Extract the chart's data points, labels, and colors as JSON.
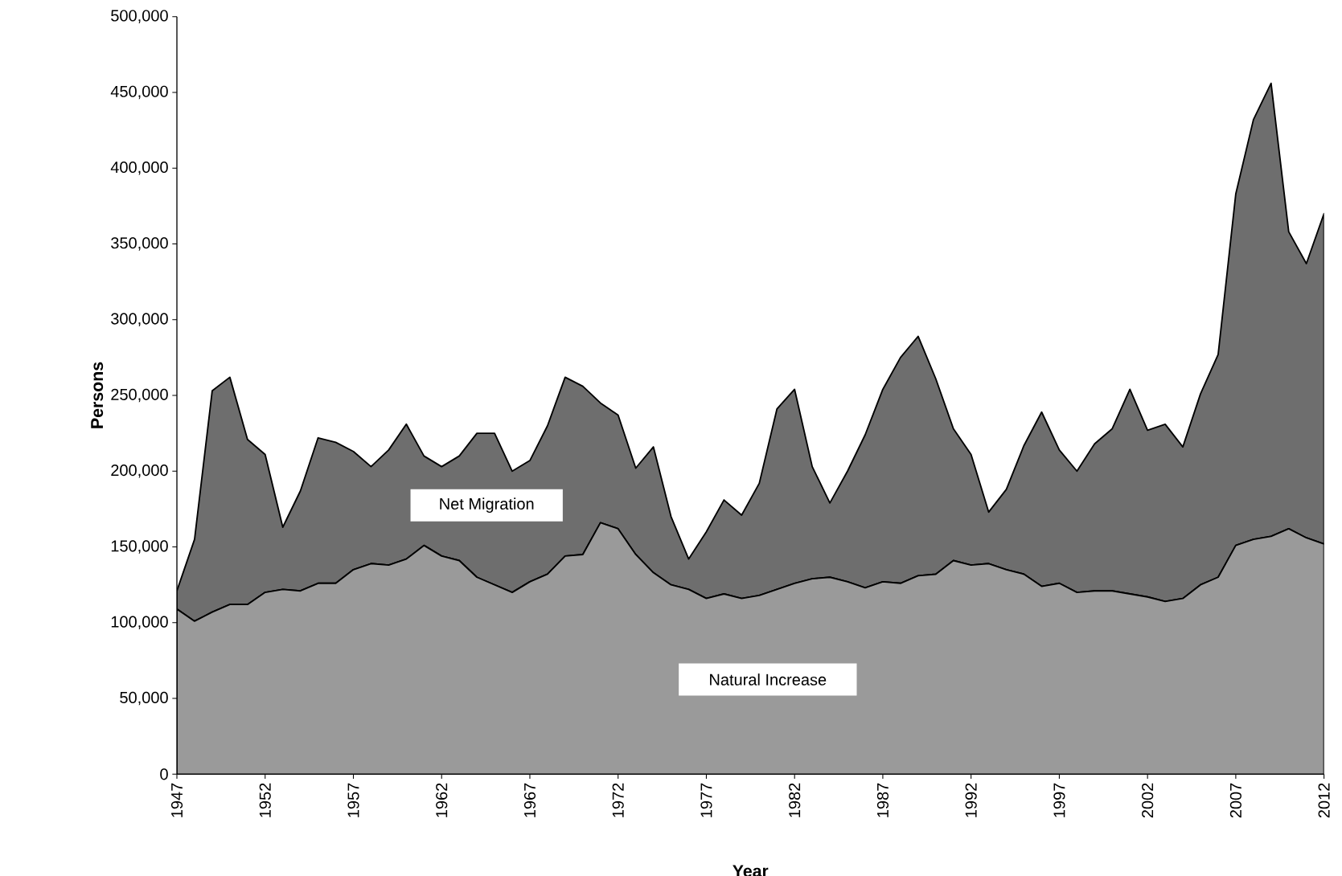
{
  "chart_data": {
    "type": "area",
    "stacked": true,
    "xlabel": "Year",
    "ylabel": "Persons",
    "legend": false,
    "x": [
      1947,
      1948,
      1949,
      1950,
      1951,
      1952,
      1953,
      1954,
      1955,
      1956,
      1957,
      1958,
      1959,
      1960,
      1961,
      1962,
      1963,
      1964,
      1965,
      1966,
      1967,
      1968,
      1969,
      1970,
      1971,
      1972,
      1973,
      1974,
      1975,
      1976,
      1977,
      1978,
      1979,
      1980,
      1981,
      1982,
      1983,
      1984,
      1985,
      1986,
      1987,
      1988,
      1989,
      1990,
      1991,
      1992,
      1993,
      1994,
      1995,
      1996,
      1997,
      1998,
      1999,
      2000,
      2001,
      2002,
      2003,
      2004,
      2005,
      2006,
      2007,
      2008,
      2009,
      2010,
      2011,
      2012
    ],
    "xlim": [
      1947,
      2012
    ],
    "xticks": [
      1947,
      1952,
      1957,
      1962,
      1967,
      1972,
      1977,
      1982,
      1987,
      1992,
      1997,
      2002,
      2007,
      2012
    ],
    "ylim": [
      0,
      500000
    ],
    "yticks": [
      0,
      {
        "value": 50000,
        "label": "50,000"
      },
      {
        "value": 100000,
        "label": "100,000"
      },
      {
        "value": 150000,
        "label": "150,000"
      },
      {
        "value": 200000,
        "label": "200,000"
      },
      {
        "value": 250000,
        "label": "250,000"
      },
      {
        "value": 300000,
        "label": "300,000"
      },
      {
        "value": 350000,
        "label": "350,000"
      },
      {
        "value": 400000,
        "label": "400,000"
      },
      {
        "value": 450000,
        "label": "450,000"
      },
      {
        "value": 500000,
        "label": "500,000"
      }
    ],
    "series": [
      {
        "name": "Natural Increase",
        "color": "#9a9a9a",
        "values": [
          109000,
          101000,
          107000,
          112000,
          112000,
          120000,
          122000,
          121000,
          126000,
          126000,
          135000,
          139000,
          138000,
          142000,
          151000,
          144000,
          141000,
          130000,
          125000,
          120000,
          127000,
          132000,
          144000,
          145000,
          166000,
          162000,
          145000,
          133000,
          125000,
          122000,
          116000,
          119000,
          116000,
          118000,
          122000,
          126000,
          129000,
          130000,
          127000,
          123000,
          127000,
          126000,
          131000,
          132000,
          141000,
          138000,
          139000,
          135000,
          132000,
          124000,
          126000,
          120000,
          121000,
          121000,
          119000,
          117000,
          114000,
          116000,
          125000,
          130000,
          151000,
          155000,
          157000,
          162000,
          156000,
          152000
        ]
      },
      {
        "name": "Net Migration",
        "color": "#6e6e6e",
        "values": [
          12000,
          54000,
          146000,
          150000,
          109000,
          91000,
          41000,
          66000,
          96000,
          93000,
          78000,
          64000,
          76000,
          89000,
          59000,
          59000,
          69000,
          95000,
          100000,
          80000,
          80000,
          98000,
          118000,
          111000,
          79000,
          75000,
          57000,
          83000,
          45000,
          20000,
          44000,
          62000,
          55000,
          74000,
          119000,
          128000,
          74000,
          49000,
          73000,
          101000,
          127000,
          149000,
          158000,
          129000,
          87000,
          73000,
          34000,
          53000,
          85000,
          115000,
          88000,
          80000,
          97000,
          107000,
          135000,
          110000,
          117000,
          100000,
          126000,
          147000,
          232000,
          277000,
          299000,
          196000,
          181000,
          218000
        ]
      }
    ]
  }
}
